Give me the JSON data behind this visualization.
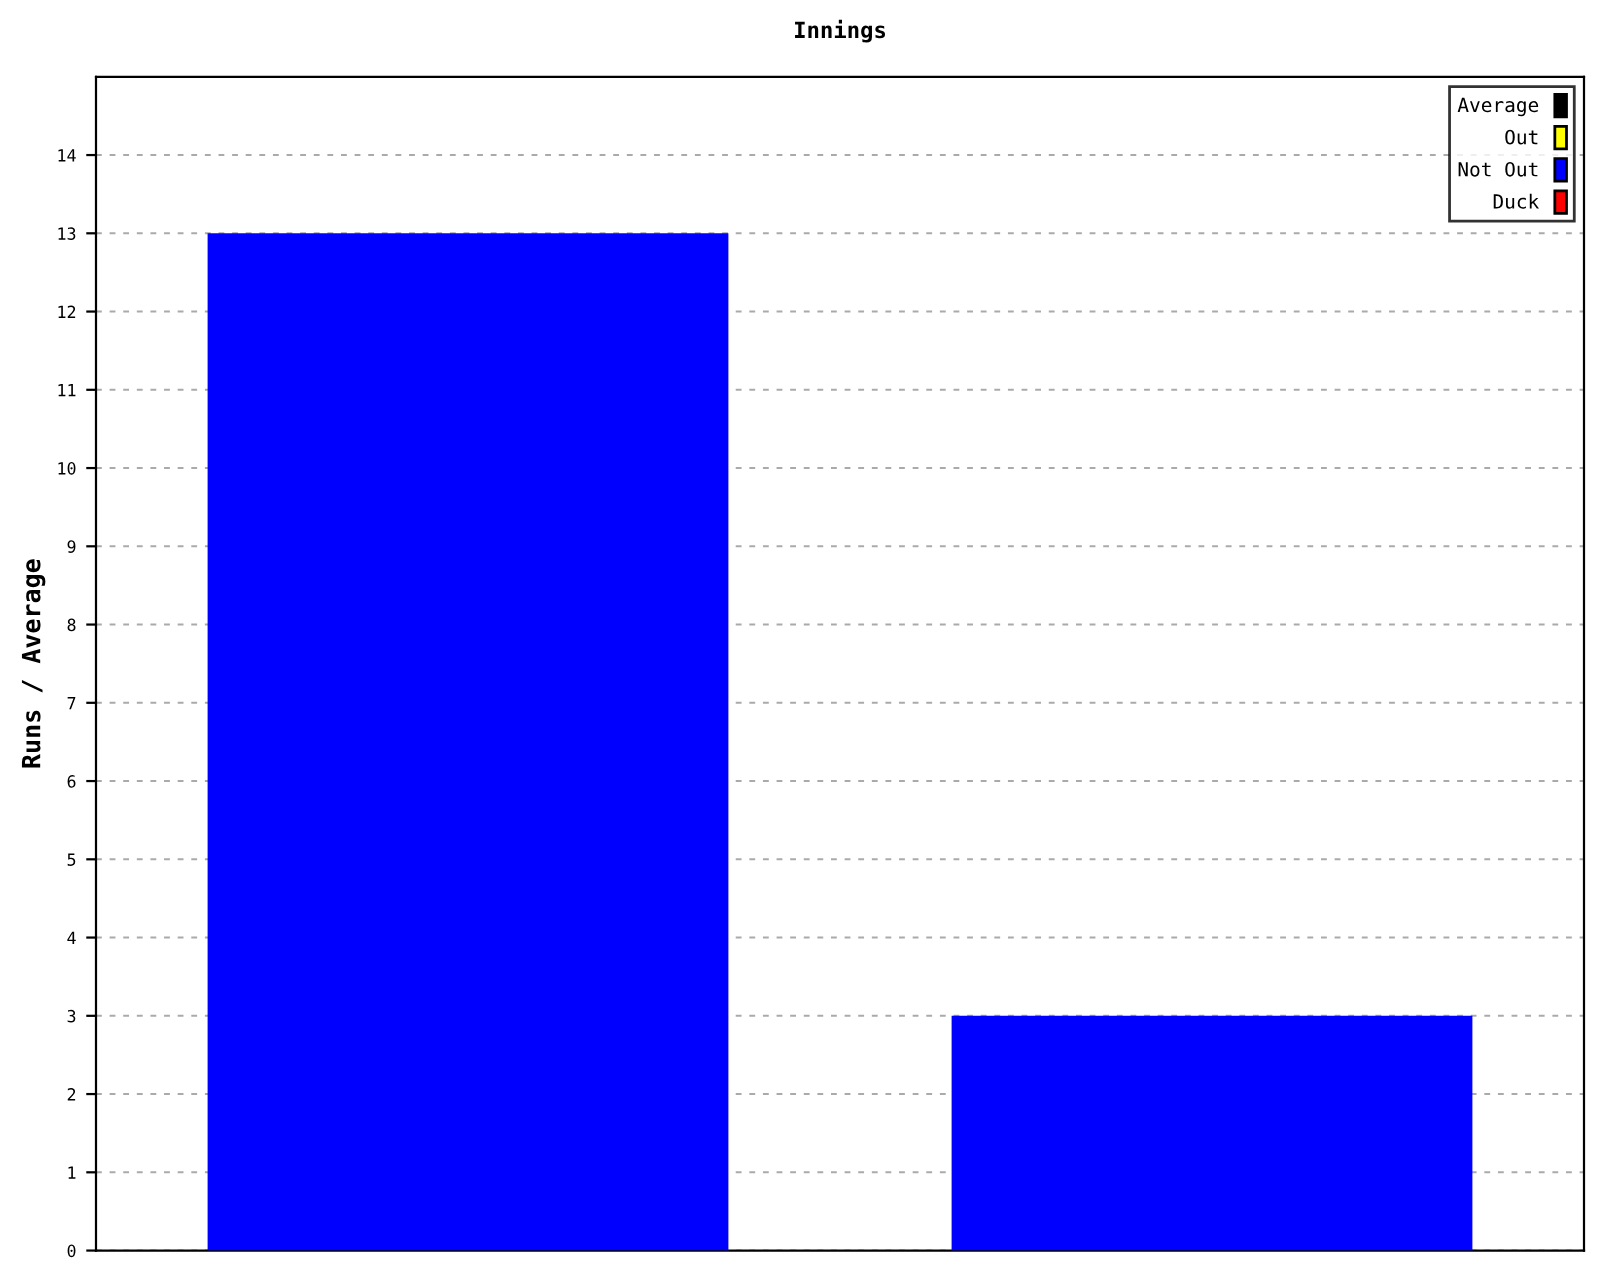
{
  "chart_data": {
    "type": "bar",
    "title": "Innings",
    "ylabel": "Runs / Average",
    "categories": [
      null,
      null
    ],
    "series": [
      {
        "name": "Average",
        "color": "#000000",
        "values": [
          null,
          null
        ]
      },
      {
        "name": "Out",
        "color": "#ffff00",
        "values": [
          null,
          null
        ]
      },
      {
        "name": "Not Out",
        "color": "#0000ff",
        "values": [
          13,
          3
        ]
      },
      {
        "name": "Duck",
        "color": "#ff0000",
        "values": [
          null,
          null
        ]
      }
    ],
    "ylim": [
      0,
      15
    ],
    "yticks": [
      0,
      1,
      2,
      3,
      4,
      5,
      6,
      7,
      8,
      9,
      10,
      11,
      12,
      13,
      14
    ],
    "grid": "y",
    "legend": "top right"
  }
}
